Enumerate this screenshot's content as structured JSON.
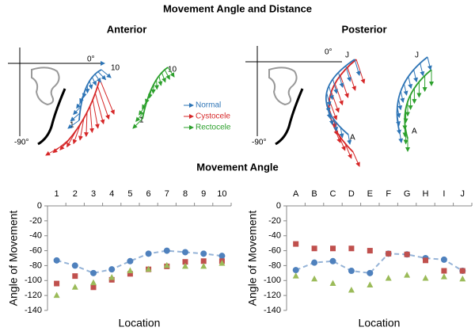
{
  "title": "Movement Angle and Distance",
  "diagrams": {
    "anterior": {
      "title": "Anterior",
      "zero": "0°",
      "minus90": "-90°",
      "start": "1",
      "end": "10"
    },
    "posterior": {
      "title": "Posterior",
      "zero": "0°",
      "minus90": "-90°",
      "start": "J",
      "end": "A"
    }
  },
  "section_title": "Movement Angle",
  "chart_data": [
    {
      "type": "scatter",
      "ylabel": "Angle of Movement",
      "xlabel": "Location",
      "categories": [
        "1",
        "2",
        "3",
        "4",
        "5",
        "6",
        "7",
        "8",
        "9",
        "10"
      ],
      "ylim": [
        -140,
        0
      ],
      "yticks": [
        0,
        -20,
        -40,
        -60,
        -80,
        -100,
        -120,
        -140
      ],
      "series": [
        {
          "name": "Normal",
          "color": "#4f81bd",
          "marker": "circle",
          "line": "dashed",
          "values": [
            -73,
            -80,
            -90,
            -85,
            -74,
            -64,
            -60,
            -62,
            -64,
            -67
          ]
        },
        {
          "name": "Cystocele",
          "color": "#c0504d",
          "marker": "square",
          "values": [
            -104,
            -94,
            -109,
            -99,
            -91,
            -85,
            -81,
            -75,
            -74,
            -74
          ]
        },
        {
          "name": "Rectocele",
          "color": "#9bbb59",
          "marker": "triangle",
          "values": [
            -120,
            -109,
            -103,
            -96,
            -87,
            -85,
            -80,
            -81,
            -81,
            -77
          ]
        }
      ]
    },
    {
      "type": "scatter",
      "ylabel": "Angle of Movement",
      "xlabel": "Location",
      "categories": [
        "A",
        "B",
        "C",
        "D",
        "E",
        "F",
        "G",
        "H",
        "I",
        "J"
      ],
      "ylim": [
        -140,
        0
      ],
      "yticks": [
        0,
        -20,
        -40,
        -60,
        -80,
        -100,
        -120,
        -140
      ],
      "series": [
        {
          "name": "Normal",
          "color": "#4f81bd",
          "marker": "circle",
          "line": "dashed",
          "values": [
            -86,
            -76,
            -74,
            -87,
            -90,
            -64,
            -65,
            -70,
            -72,
            -87
          ]
        },
        {
          "name": "Cystocele",
          "color": "#c0504d",
          "marker": "square",
          "values": [
            -51,
            -57,
            -57,
            -57,
            -60,
            -64,
            -65,
            -73,
            -87,
            -87
          ]
        },
        {
          "name": "Rectocele",
          "color": "#9bbb59",
          "marker": "triangle",
          "values": [
            -94,
            -98,
            -104,
            -113,
            -106,
            -97,
            -93,
            -97,
            -95,
            -98
          ]
        }
      ]
    }
  ]
}
